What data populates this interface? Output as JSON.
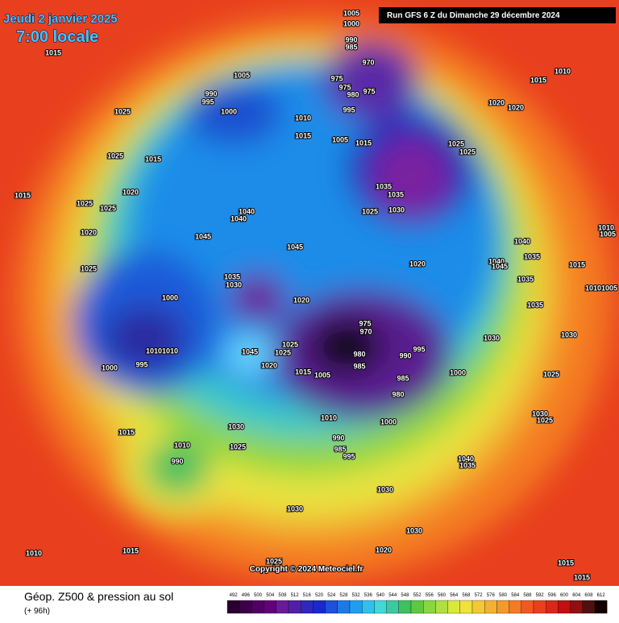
{
  "header": {
    "title": "Jeudi 2 janvier 2025",
    "time": "7:00 locale",
    "run": "Run GFS 6 Z du Dimanche 29 décembre 2024"
  },
  "map": {
    "copyright": "Copyright © 2024 Meteociel.fr",
    "isobar_labels": [
      "1015",
      "1025",
      "1025",
      "1015",
      "1015",
      "1020",
      "1025",
      "1025",
      "1020",
      "1025",
      "1005",
      "990",
      "995",
      "1000",
      "1010",
      "1015",
      "1005",
      "1000",
      "990",
      "985",
      "970",
      "975",
      "975",
      "980",
      "975",
      "995",
      "1005",
      "1015",
      "1025",
      "1025",
      "1035",
      "1035",
      "1025",
      "1030",
      "1040",
      "1040",
      "1045",
      "1045",
      "1020",
      "1035",
      "1030",
      "1020",
      "1000",
      "975",
      "970",
      "980",
      "990",
      "995",
      "985",
      "985",
      "980",
      "1010",
      "1010",
      "1045",
      "1025",
      "1025",
      "1020",
      "1015",
      "1005",
      "1000",
      "995",
      "1000",
      "1030",
      "1030",
      "1025",
      "1030",
      "1025",
      "1010",
      "1000",
      "1030",
      "1025",
      "1015",
      "1010",
      "990",
      "990",
      "985",
      "995",
      "1040",
      "1035",
      "1030",
      "1030",
      "1030",
      "1020",
      "1010",
      "1015",
      "1025",
      "1015",
      "1015",
      "1010",
      "1015",
      "1020",
      "1020",
      "1040",
      "1035",
      "1040",
      "1045",
      "1035",
      "1035",
      "1015",
      "1010",
      "1005",
      "1010",
      "1005"
    ]
  },
  "footer": {
    "product": "Géop. Z500 & pression au sol",
    "lead": "(+ 96h)",
    "scale": [
      492,
      496,
      500,
      504,
      508,
      512,
      516,
      520,
      524,
      528,
      532,
      536,
      540,
      544,
      548,
      552,
      556,
      560,
      564,
      568,
      572,
      576,
      580,
      584,
      588,
      592,
      596,
      600,
      604,
      608,
      612
    ]
  }
}
